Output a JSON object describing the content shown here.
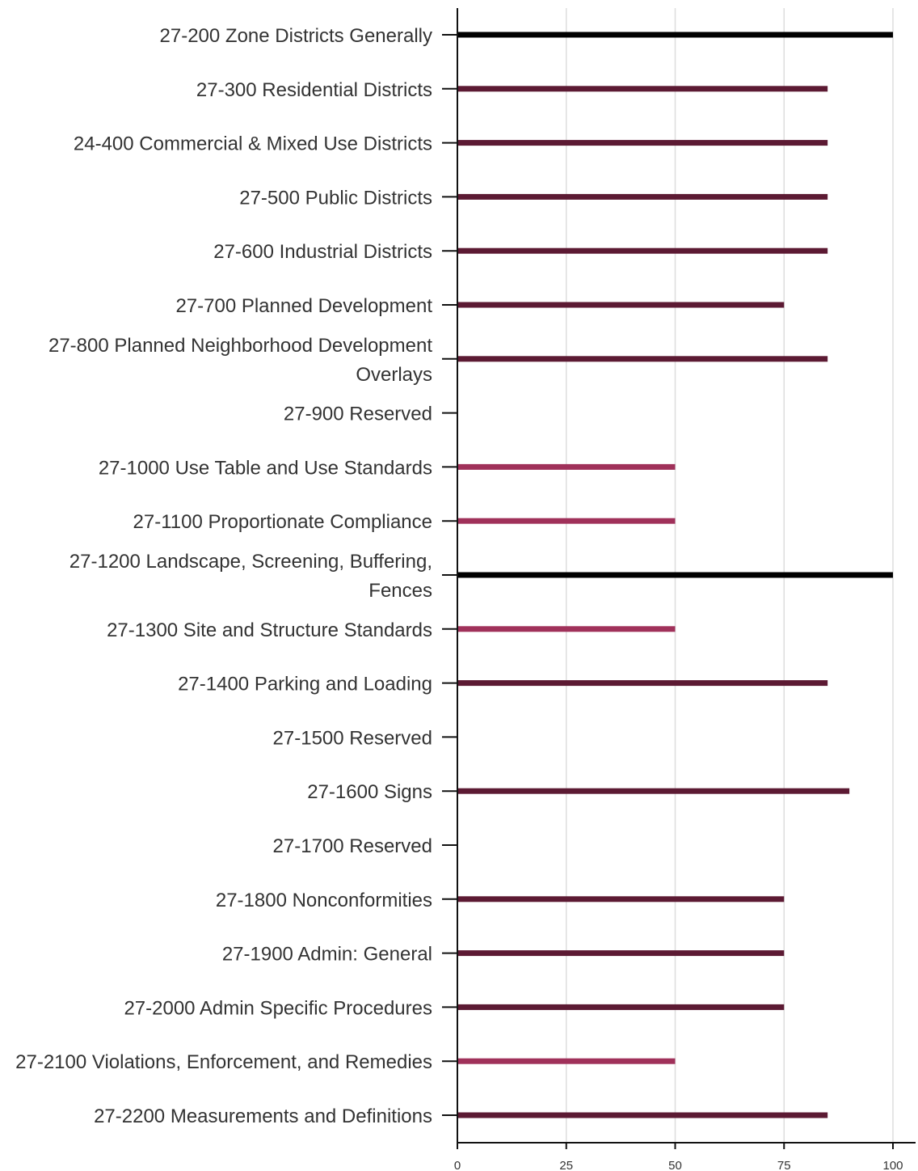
{
  "chart_data": {
    "type": "bar",
    "orientation": "horizontal",
    "title": "",
    "xlabel": "",
    "ylabel": "",
    "xlim": [
      0,
      100
    ],
    "x_ticks": [
      0,
      25,
      50,
      75,
      100
    ],
    "grid": true,
    "legend": "none",
    "categories": [
      [
        "27-200 Zone Districts Generally"
      ],
      [
        "27-300 Residential Districts"
      ],
      [
        "24-400 Commercial & Mixed Use Districts"
      ],
      [
        "27-500 Public Districts"
      ],
      [
        "27-600 Industrial Districts"
      ],
      [
        "27-700 Planned Development"
      ],
      [
        "27-800 Planned Neighborhood Development",
        "Overlays"
      ],
      [
        "27-900 Reserved"
      ],
      [
        "27-1000 Use Table and Use Standards"
      ],
      [
        "27-1100 Proportionate Compliance"
      ],
      [
        "27-1200 Landscape, Screening, Buffering,",
        "Fences"
      ],
      [
        "27-1300 Site and Structure Standards"
      ],
      [
        "27-1400 Parking and Loading"
      ],
      [
        "27-1500 Reserved"
      ],
      [
        "27-1600 Signs"
      ],
      [
        "27-1700 Reserved"
      ],
      [
        "27-1800 Nonconformities"
      ],
      [
        "27-1900 Admin: General"
      ],
      [
        "27-2000 Admin Specific Procedures"
      ],
      [
        "27-2100 Violations, Enforcement, and Remedies"
      ],
      [
        "27-2200 Measurements and Definitions"
      ]
    ],
    "values": [
      100,
      85,
      85,
      85,
      85,
      75,
      85,
      0,
      50,
      50,
      100,
      50,
      85,
      0,
      90,
      0,
      75,
      75,
      75,
      50,
      85
    ],
    "colors": {
      "complete": "#000000",
      "high": "#5c1a33",
      "medium": "#a0315a"
    },
    "color_rule": "100 = complete; 75-99 = high; 50 = medium"
  }
}
